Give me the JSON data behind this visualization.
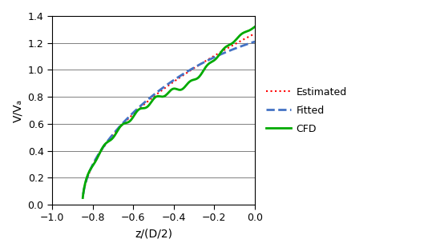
{
  "title": "",
  "xlabel": "z/(D/2)",
  "ylabel": "V/Vₐ",
  "xlim": [
    -1.0,
    0.0
  ],
  "ylim": [
    0.0,
    1.4
  ],
  "xticks": [
    -1.0,
    -0.8,
    -0.6,
    -0.4,
    -0.2,
    0.0
  ],
  "yticks": [
    0.0,
    0.2,
    0.4,
    0.6,
    0.8,
    1.0,
    1.2,
    1.4
  ],
  "cfd_color": "#00AA00",
  "fitted_color": "#4472C4",
  "estimated_color": "#FF0000",
  "background_color": "#FFFFFF",
  "legend_labels": [
    "CFD",
    "Fitted",
    "Estimated"
  ]
}
